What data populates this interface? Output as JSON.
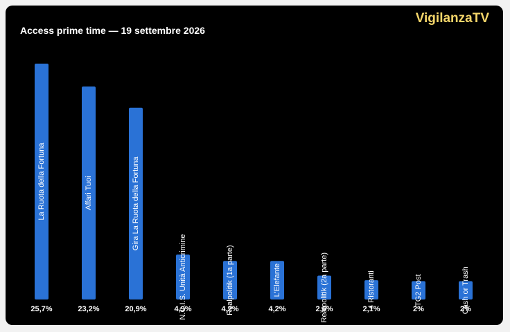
{
  "header": {
    "title": "Access prime time — 19 settembre 2026",
    "brand": "VigilanzaTV"
  },
  "colors": {
    "background": "#000000",
    "bar": "#2a72d6",
    "brand": "#f5d66a",
    "text": "#ffffff"
  },
  "chart_data": {
    "type": "bar",
    "title": "Access prime time — 19 settembre 2026",
    "categories": [
      "La Ruota della Fortuna",
      "Affari Tuoi",
      "Gira La Ruota della Fortuna",
      "N.C.I.S. Unità Anticrimine",
      "Realpolitik (1a parte)",
      "L'Elefante",
      "Realpolitik (2a parte)",
      "4 Ristoranti",
      "TG2 Post",
      "Cash or Trash"
    ],
    "values": [
      25.7,
      23.2,
      20.9,
      4.9,
      4.2,
      4.2,
      2.6,
      2.1,
      2,
      2
    ],
    "value_labels": [
      "25,7%",
      "23,2%",
      "20,9%",
      "4,9%",
      "4,2%",
      "4,2%",
      "2,6%",
      "2,1%",
      "2%",
      "2%"
    ],
    "unit": "%",
    "xlabel": "",
    "ylabel": "",
    "ylim": [
      0,
      25.7
    ],
    "grid": false,
    "legend": "none",
    "category_labels_inside_bars": true
  }
}
